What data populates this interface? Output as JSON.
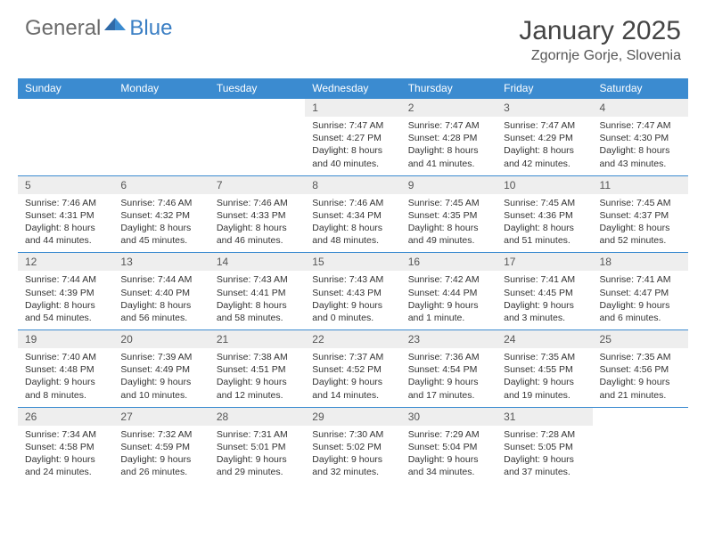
{
  "logo": {
    "text1": "General",
    "text2": "Blue"
  },
  "title": "January 2025",
  "location": "Zgornje Gorje, Slovenia",
  "colors": {
    "header_bg": "#3b8bd0",
    "header_text": "#ffffff",
    "daynum_bg": "#eeeeee",
    "border": "#3b8bd0",
    "logo_gray": "#6b6b6b",
    "logo_blue": "#3b7fc4"
  },
  "weekdays": [
    "Sunday",
    "Monday",
    "Tuesday",
    "Wednesday",
    "Thursday",
    "Friday",
    "Saturday"
  ],
  "weeks": [
    {
      "nums": [
        "",
        "",
        "",
        "1",
        "2",
        "3",
        "4"
      ],
      "cells": [
        null,
        null,
        null,
        {
          "sunrise": "7:47 AM",
          "sunset": "4:27 PM",
          "daylight": "8 hours and 40 minutes."
        },
        {
          "sunrise": "7:47 AM",
          "sunset": "4:28 PM",
          "daylight": "8 hours and 41 minutes."
        },
        {
          "sunrise": "7:47 AM",
          "sunset": "4:29 PM",
          "daylight": "8 hours and 42 minutes."
        },
        {
          "sunrise": "7:47 AM",
          "sunset": "4:30 PM",
          "daylight": "8 hours and 43 minutes."
        }
      ]
    },
    {
      "nums": [
        "5",
        "6",
        "7",
        "8",
        "9",
        "10",
        "11"
      ],
      "cells": [
        {
          "sunrise": "7:46 AM",
          "sunset": "4:31 PM",
          "daylight": "8 hours and 44 minutes."
        },
        {
          "sunrise": "7:46 AM",
          "sunset": "4:32 PM",
          "daylight": "8 hours and 45 minutes."
        },
        {
          "sunrise": "7:46 AM",
          "sunset": "4:33 PM",
          "daylight": "8 hours and 46 minutes."
        },
        {
          "sunrise": "7:46 AM",
          "sunset": "4:34 PM",
          "daylight": "8 hours and 48 minutes."
        },
        {
          "sunrise": "7:45 AM",
          "sunset": "4:35 PM",
          "daylight": "8 hours and 49 minutes."
        },
        {
          "sunrise": "7:45 AM",
          "sunset": "4:36 PM",
          "daylight": "8 hours and 51 minutes."
        },
        {
          "sunrise": "7:45 AM",
          "sunset": "4:37 PM",
          "daylight": "8 hours and 52 minutes."
        }
      ]
    },
    {
      "nums": [
        "12",
        "13",
        "14",
        "15",
        "16",
        "17",
        "18"
      ],
      "cells": [
        {
          "sunrise": "7:44 AM",
          "sunset": "4:39 PM",
          "daylight": "8 hours and 54 minutes."
        },
        {
          "sunrise": "7:44 AM",
          "sunset": "4:40 PM",
          "daylight": "8 hours and 56 minutes."
        },
        {
          "sunrise": "7:43 AM",
          "sunset": "4:41 PM",
          "daylight": "8 hours and 58 minutes."
        },
        {
          "sunrise": "7:43 AM",
          "sunset": "4:43 PM",
          "daylight": "9 hours and 0 minutes."
        },
        {
          "sunrise": "7:42 AM",
          "sunset": "4:44 PM",
          "daylight": "9 hours and 1 minute."
        },
        {
          "sunrise": "7:41 AM",
          "sunset": "4:45 PM",
          "daylight": "9 hours and 3 minutes."
        },
        {
          "sunrise": "7:41 AM",
          "sunset": "4:47 PM",
          "daylight": "9 hours and 6 minutes."
        }
      ]
    },
    {
      "nums": [
        "19",
        "20",
        "21",
        "22",
        "23",
        "24",
        "25"
      ],
      "cells": [
        {
          "sunrise": "7:40 AM",
          "sunset": "4:48 PM",
          "daylight": "9 hours and 8 minutes."
        },
        {
          "sunrise": "7:39 AM",
          "sunset": "4:49 PM",
          "daylight": "9 hours and 10 minutes."
        },
        {
          "sunrise": "7:38 AM",
          "sunset": "4:51 PM",
          "daylight": "9 hours and 12 minutes."
        },
        {
          "sunrise": "7:37 AM",
          "sunset": "4:52 PM",
          "daylight": "9 hours and 14 minutes."
        },
        {
          "sunrise": "7:36 AM",
          "sunset": "4:54 PM",
          "daylight": "9 hours and 17 minutes."
        },
        {
          "sunrise": "7:35 AM",
          "sunset": "4:55 PM",
          "daylight": "9 hours and 19 minutes."
        },
        {
          "sunrise": "7:35 AM",
          "sunset": "4:56 PM",
          "daylight": "9 hours and 21 minutes."
        }
      ]
    },
    {
      "nums": [
        "26",
        "27",
        "28",
        "29",
        "30",
        "31",
        ""
      ],
      "cells": [
        {
          "sunrise": "7:34 AM",
          "sunset": "4:58 PM",
          "daylight": "9 hours and 24 minutes."
        },
        {
          "sunrise": "7:32 AM",
          "sunset": "4:59 PM",
          "daylight": "9 hours and 26 minutes."
        },
        {
          "sunrise": "7:31 AM",
          "sunset": "5:01 PM",
          "daylight": "9 hours and 29 minutes."
        },
        {
          "sunrise": "7:30 AM",
          "sunset": "5:02 PM",
          "daylight": "9 hours and 32 minutes."
        },
        {
          "sunrise": "7:29 AM",
          "sunset": "5:04 PM",
          "daylight": "9 hours and 34 minutes."
        },
        {
          "sunrise": "7:28 AM",
          "sunset": "5:05 PM",
          "daylight": "9 hours and 37 minutes."
        },
        null
      ]
    }
  ],
  "labels": {
    "sunrise": "Sunrise:",
    "sunset": "Sunset:",
    "daylight": "Daylight:"
  }
}
